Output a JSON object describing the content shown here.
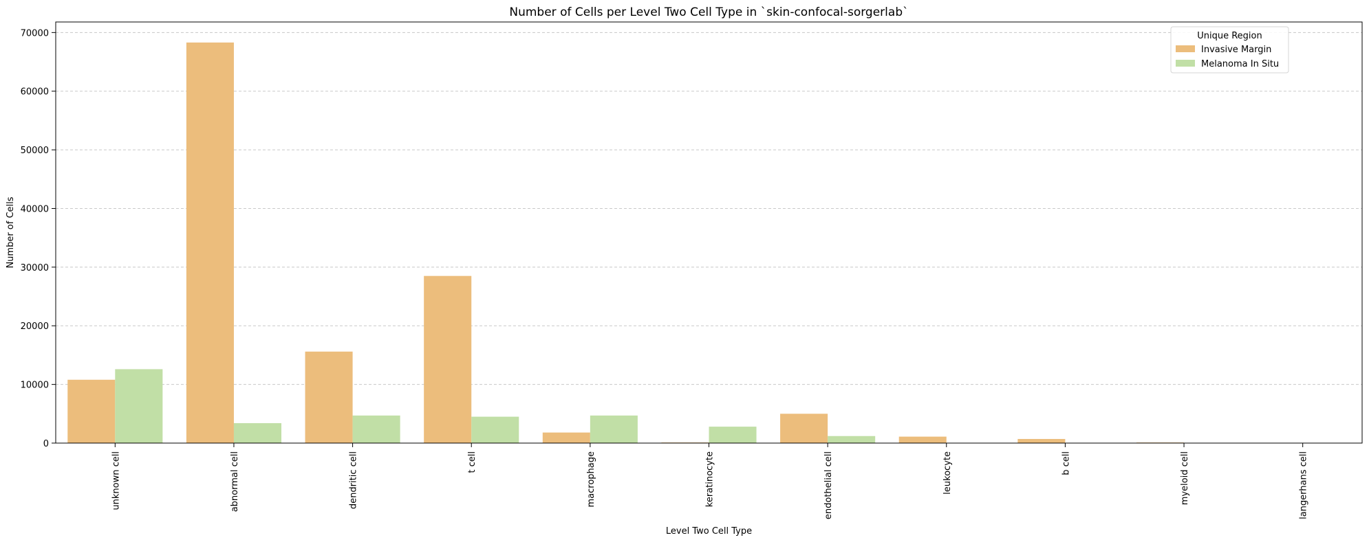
{
  "chart_data": {
    "type": "bar",
    "title": "Number of Cells per Level Two Cell Type in `skin-confocal-sorgerlab`",
    "xlabel": "Level Two Cell Type",
    "ylabel": "Number of Cells",
    "categories": [
      "unknown cell",
      "abnormal cell",
      "dendritic cell",
      "t cell",
      "macrophage",
      "keratinocyte",
      "endothelial cell",
      "leukocyte",
      "b cell",
      "myeloid cell",
      "langerhans cell"
    ],
    "series": [
      {
        "name": "Invasive Margin",
        "color": "#ecbd7c",
        "values": [
          10800,
          68300,
          15600,
          28500,
          1800,
          100,
          5000,
          1100,
          700,
          100,
          20
        ]
      },
      {
        "name": "Melanoma In Situ",
        "color": "#c1dfa6",
        "values": [
          12600,
          3400,
          4700,
          4500,
          4700,
          2800,
          1200,
          20,
          50,
          20,
          5
        ]
      }
    ],
    "ylim": [
      0,
      71800
    ],
    "yticks": [
      0,
      10000,
      20000,
      30000,
      40000,
      50000,
      60000,
      70000
    ],
    "yticks_labels": [
      "0",
      "10000",
      "20000",
      "30000",
      "40000",
      "50000",
      "60000",
      "70000"
    ],
    "grid": "y-dashed",
    "legend": {
      "title": "Unique Region",
      "placement": "top-right"
    }
  }
}
